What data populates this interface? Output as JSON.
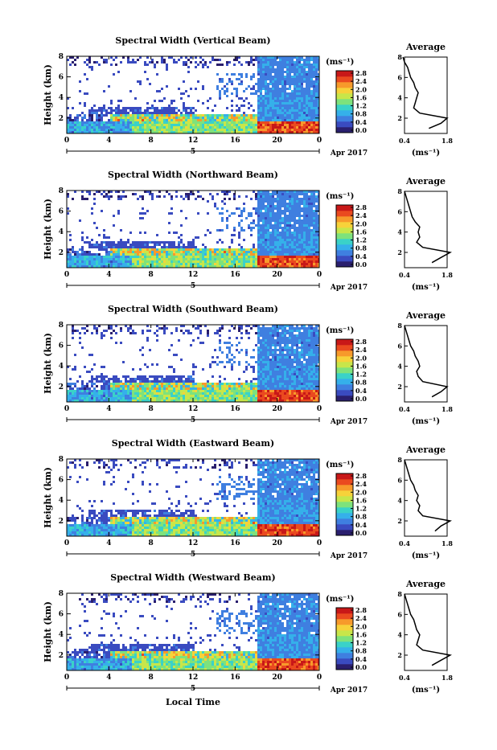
{
  "figure": {
    "xlabel": "Local Time",
    "date_label": "Apr 2017",
    "day_label": "5"
  },
  "colorbar": {
    "unit": "(ms⁻¹)",
    "ticks": [
      "2.8",
      "2.4",
      "2.0",
      "1.6",
      "1.2",
      "0.8",
      "0.4",
      "0.0"
    ],
    "colors": [
      "#2a1f6e",
      "#3a4bc0",
      "#3f7fe0",
      "#35b0ea",
      "#3ad2c8",
      "#7ee27c",
      "#c8e64a",
      "#f7d23a",
      "#f79a2b",
      "#ea4a1f",
      "#c81818"
    ]
  },
  "avg_profile": {
    "title": "Average",
    "xticks": [
      "0.4",
      "1.8"
    ],
    "yticks": [
      "8",
      "6",
      "4",
      "2"
    ],
    "xunit": "(ms⁻¹)"
  },
  "chart_data": [
    {
      "type": "heatmap",
      "title": "Spectral Width (Vertical Beam)",
      "ylabel": "Height (km)",
      "xticks": [
        "0",
        "4",
        "8",
        "12",
        "16",
        "20",
        "0"
      ],
      "yticks": [
        "8",
        "6",
        "4",
        "2"
      ],
      "xlim": [
        0,
        24
      ],
      "ylim": [
        0.5,
        8
      ],
      "colorbar_range": [
        0.0,
        2.8
      ],
      "average_profile": {
        "heights": [
          1.0,
          1.5,
          2.0,
          2.5,
          3.0,
          3.5,
          4.0,
          4.5,
          5.0,
          5.5,
          6.0,
          6.5,
          7.0,
          7.5,
          8.0
        ],
        "values": [
          1.2,
          1.6,
          1.8,
          0.9,
          0.7,
          0.75,
          0.8,
          0.85,
          0.75,
          0.7,
          0.6,
          0.55,
          0.5,
          0.4,
          0.35
        ]
      }
    },
    {
      "type": "heatmap",
      "title": "Spectral Width (Northward Beam)",
      "ylabel": "Height (km)",
      "xticks": [
        "0",
        "4",
        "8",
        "12",
        "16",
        "20",
        "0"
      ],
      "yticks": [
        "8",
        "6",
        "4",
        "2"
      ],
      "xlim": [
        0,
        24
      ],
      "ylim": [
        0.5,
        8
      ],
      "colorbar_range": [
        0.0,
        2.8
      ],
      "average_profile": {
        "heights": [
          1.0,
          1.5,
          2.0,
          2.5,
          3.0,
          3.5,
          4.0,
          4.5,
          5.0,
          5.5,
          6.0,
          6.5,
          7.0,
          7.5,
          8.0
        ],
        "values": [
          1.3,
          1.6,
          1.9,
          1.0,
          0.8,
          0.9,
          0.85,
          0.9,
          0.75,
          0.65,
          0.6,
          0.55,
          0.5,
          0.45,
          0.4
        ]
      }
    },
    {
      "type": "heatmap",
      "title": "Spectral Width (Southward Beam)",
      "ylabel": "Height (km)",
      "xticks": [
        "0",
        "4",
        "8",
        "12",
        "16",
        "20",
        "0"
      ],
      "yticks": [
        "8",
        "6",
        "4",
        "2"
      ],
      "xlim": [
        0,
        24
      ],
      "ylim": [
        0.5,
        8
      ],
      "colorbar_range": [
        0.0,
        2.8
      ],
      "average_profile": {
        "heights": [
          1.0,
          1.5,
          2.0,
          2.5,
          3.0,
          3.5,
          4.0,
          4.5,
          5.0,
          5.5,
          6.0,
          6.5,
          7.0,
          7.5,
          8.0
        ],
        "values": [
          1.3,
          1.6,
          1.8,
          1.0,
          0.85,
          0.8,
          0.9,
          0.85,
          0.75,
          0.7,
          0.6,
          0.55,
          0.5,
          0.45,
          0.4
        ]
      }
    },
    {
      "type": "heatmap",
      "title": "Spectral Width (Eastward Beam)",
      "ylabel": "Height (km)",
      "xticks": [
        "0",
        "4",
        "8",
        "12",
        "16",
        "20",
        "0"
      ],
      "yticks": [
        "8",
        "6",
        "4",
        "2"
      ],
      "xlim": [
        0,
        24
      ],
      "ylim": [
        0.5,
        8
      ],
      "colorbar_range": [
        0.0,
        2.8
      ],
      "average_profile": {
        "heights": [
          1.0,
          1.5,
          2.0,
          2.5,
          3.0,
          3.5,
          4.0,
          4.5,
          5.0,
          5.5,
          6.0,
          6.5,
          7.0,
          7.5,
          8.0
        ],
        "values": [
          1.4,
          1.6,
          1.9,
          1.0,
          0.85,
          0.9,
          0.8,
          0.85,
          0.75,
          0.7,
          0.6,
          0.55,
          0.5,
          0.45,
          0.4
        ]
      }
    },
    {
      "type": "heatmap",
      "title": "Spectral Width (Westward Beam)",
      "ylabel": "Height (km)",
      "xticks": [
        "0",
        "4",
        "8",
        "12",
        "16",
        "20",
        "0"
      ],
      "yticks": [
        "8",
        "6",
        "4",
        "2"
      ],
      "xlim": [
        0,
        24
      ],
      "ylim": [
        0.5,
        8
      ],
      "colorbar_range": [
        0.0,
        2.8
      ],
      "average_profile": {
        "heights": [
          1.0,
          1.5,
          2.0,
          2.5,
          3.0,
          3.5,
          4.0,
          4.5,
          5.0,
          5.5,
          6.0,
          6.5,
          7.0,
          7.5,
          8.0
        ],
        "values": [
          1.3,
          1.6,
          1.9,
          1.0,
          0.8,
          0.85,
          0.9,
          0.8,
          0.75,
          0.7,
          0.6,
          0.55,
          0.5,
          0.45,
          0.4
        ]
      }
    }
  ]
}
